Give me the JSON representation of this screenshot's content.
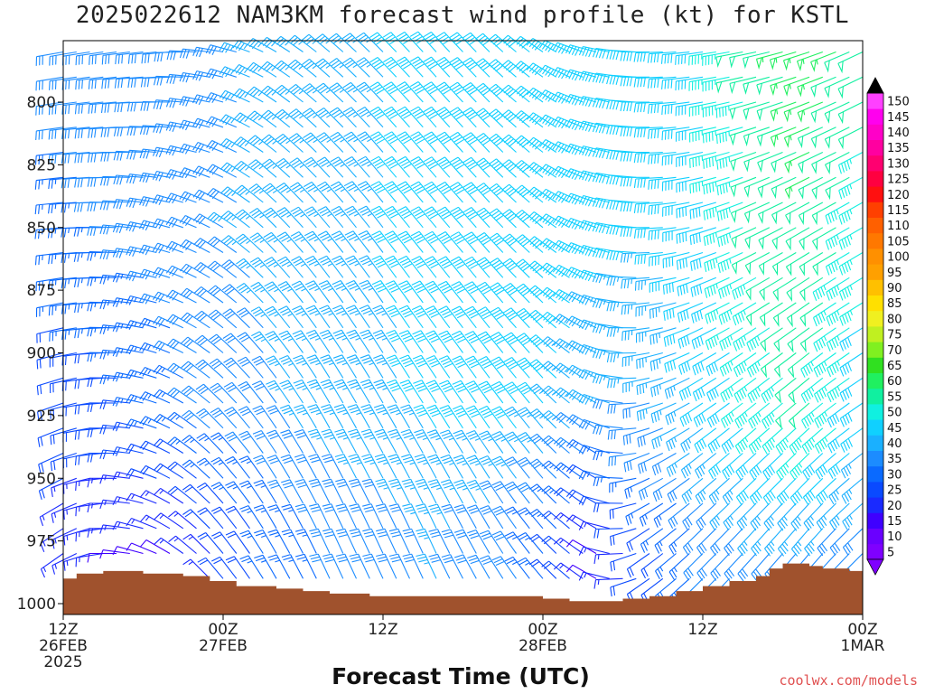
{
  "chart_data": {
    "type": "wind-barb-time-height",
    "title": "2025022612 NAM3KM forecast wind profile (kt) for KSTL",
    "xlabel": "Forecast Time (UTC)",
    "ylabel": "",
    "credit": "coolwx.com/models",
    "x_ticks": [
      {
        "hour": 0,
        "lines": [
          "12Z",
          "26FEB",
          "2025"
        ]
      },
      {
        "hour": 12,
        "lines": [
          "00Z",
          "27FEB"
        ]
      },
      {
        "hour": 24,
        "lines": [
          "12Z"
        ]
      },
      {
        "hour": 36,
        "lines": [
          "00Z",
          "28FEB"
        ]
      },
      {
        "hour": 48,
        "lines": [
          "12Z"
        ]
      },
      {
        "hour": 60,
        "lines": [
          "00Z",
          "1MAR"
        ]
      }
    ],
    "xlim": [
      0,
      60
    ],
    "y_ticks": [
      800,
      825,
      850,
      875,
      900,
      925,
      950,
      975,
      1000
    ],
    "ylim": [
      780,
      1002
    ],
    "y_axis_reversed": true,
    "levels_hpa": [
      780,
      790,
      800,
      810,
      820,
      830,
      840,
      850,
      860,
      870,
      880,
      890,
      900,
      910,
      920,
      930,
      940,
      950,
      960,
      970,
      980,
      990,
      1000
    ],
    "terrain_color": "#a0522d",
    "surface_pressure": {
      "hours": [
        0,
        1,
        3,
        6,
        9,
        11,
        13,
        16,
        18,
        20,
        23,
        27,
        33,
        36,
        38,
        41,
        42,
        44,
        46,
        48,
        50,
        52,
        53,
        54,
        56,
        57,
        59,
        60
      ],
      "hpa": [
        990,
        988,
        987,
        988,
        989,
        991,
        993,
        994,
        995,
        996,
        997,
        997,
        997,
        998,
        999,
        999,
        998,
        997,
        995,
        993,
        991,
        989,
        986,
        984,
        985,
        986,
        987,
        987
      ]
    },
    "wind_speed_kt": {
      "hour_nodes": [
        0,
        4,
        8,
        12,
        16,
        20,
        24,
        28,
        32,
        36,
        40,
        44,
        48,
        52,
        56,
        60
      ],
      "rows": [
        {
          "hpa": 780,
          "kt": [
            30,
            30,
            30,
            32,
            33,
            35,
            37,
            40,
            42,
            42,
            40,
            38,
            42,
            50,
            55,
            50
          ]
        },
        {
          "hpa": 850,
          "kt": [
            25,
            28,
            30,
            32,
            34,
            35,
            37,
            40,
            42,
            42,
            40,
            38,
            40,
            48,
            52,
            45
          ]
        },
        {
          "hpa": 925,
          "kt": [
            20,
            20,
            25,
            30,
            32,
            35,
            37,
            38,
            40,
            38,
            32,
            32,
            38,
            45,
            48,
            40
          ]
        },
        {
          "hpa": 975,
          "kt": [
            15,
            12,
            12,
            18,
            25,
            28,
            30,
            33,
            30,
            25,
            12,
            20,
            28,
            32,
            32,
            30
          ]
        }
      ]
    },
    "wind_direction_deg": {
      "hour_nodes": [
        0,
        4,
        8,
        12,
        16,
        20,
        24,
        28,
        32,
        36,
        40,
        44,
        48,
        52,
        56,
        60
      ],
      "rows": [
        {
          "hpa": 780,
          "deg": [
            260,
            262,
            265,
            280,
            300,
            310,
            315,
            318,
            315,
            305,
            285,
            270,
            262,
            258,
            252,
            245
          ]
        },
        {
          "hpa": 850,
          "deg": [
            265,
            272,
            285,
            300,
            315,
            320,
            322,
            320,
            318,
            310,
            290,
            270,
            255,
            245,
            240,
            240
          ]
        },
        {
          "hpa": 925,
          "deg": [
            250,
            270,
            295,
            315,
            325,
            330,
            330,
            328,
            325,
            320,
            300,
            255,
            235,
            230,
            228,
            235
          ]
        },
        {
          "hpa": 975,
          "deg": [
            235,
            270,
            300,
            320,
            330,
            335,
            335,
            335,
            330,
            320,
            300,
            235,
            225,
            222,
            220,
            225
          ]
        }
      ]
    },
    "colorbar": {
      "labels": [
        5,
        10,
        15,
        20,
        25,
        30,
        35,
        40,
        45,
        50,
        55,
        60,
        65,
        70,
        75,
        80,
        85,
        90,
        95,
        100,
        105,
        110,
        115,
        120,
        125,
        130,
        135,
        140,
        145,
        150
      ],
      "colors": [
        "#7f00ff",
        "#6a00ff",
        "#3f00ff",
        "#1a2aff",
        "#0a4aff",
        "#0a6aff",
        "#1c8cff",
        "#1ab0ff",
        "#10d0ff",
        "#10f0e0",
        "#10f0a0",
        "#20f060",
        "#30e020",
        "#80f020",
        "#c0f020",
        "#f0f020",
        "#ffe000",
        "#ffc000",
        "#ffa000",
        "#ff9000",
        "#ff7800",
        "#ff6000",
        "#ff4000",
        "#ff1010",
        "#ff0040",
        "#ff0070",
        "#ff00a0",
        "#ff00c8",
        "#ff00ee",
        "#ff40ff"
      ],
      "top_arrow_color": "#000000",
      "bottom_arrow_color": "#7f00ff"
    }
  }
}
